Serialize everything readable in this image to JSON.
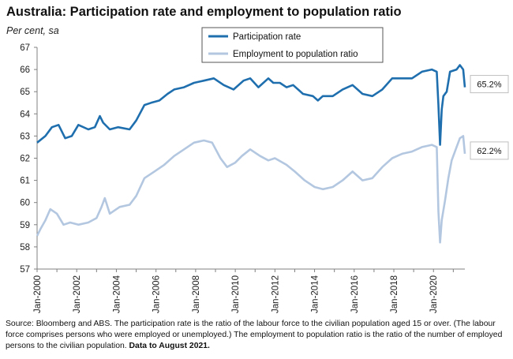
{
  "title": "Australia: Participation rate and employment to population ratio",
  "subtitle": "Per cent, sa",
  "source_text": "Source: Bloomberg and ABS.  The participation rate is the ratio of the labour force to the civilian population aged 15 or over. (The labour force comprises persons who were employed or unemployed.)  The employment to population ratio is the ratio of the number of employed persons to the civilian population. ",
  "source_bold": "Data to August 2021.",
  "colors": {
    "participation": "#1f6fae",
    "employment": "#b3c7e0",
    "axis": "#808080"
  },
  "chart_data": {
    "type": "line",
    "title": "Australia: Participation rate and employment to population ratio",
    "ylabel": "Per cent, sa",
    "ylim": [
      57,
      67
    ],
    "yticks": [
      57,
      58,
      59,
      60,
      61,
      62,
      63,
      64,
      65,
      66,
      67
    ],
    "xlim": [
      "2000-01",
      "2021-08"
    ],
    "xticks": [
      "Jan-2000",
      "Jan-2002",
      "Jan-2004",
      "Jan-2006",
      "Jan-2008",
      "Jan-2010",
      "Jan-2012",
      "Jan-2014",
      "Jan-2016",
      "Jan-2018",
      "Jan-2020"
    ],
    "grid": false,
    "legend_position": "top-center",
    "series": [
      {
        "name": "Participation rate",
        "color": "#1f6fae",
        "end_label": "65.2%",
        "points": [
          [
            "2000-01",
            62.7
          ],
          [
            "2000-06",
            63.0
          ],
          [
            "2000-10",
            63.4
          ],
          [
            "2001-02",
            63.5
          ],
          [
            "2001-06",
            62.9
          ],
          [
            "2001-10",
            63.0
          ],
          [
            "2002-02",
            63.5
          ],
          [
            "2002-08",
            63.3
          ],
          [
            "2002-12",
            63.4
          ],
          [
            "2003-03",
            63.9
          ],
          [
            "2003-05",
            63.6
          ],
          [
            "2003-09",
            63.3
          ],
          [
            "2004-02",
            63.4
          ],
          [
            "2004-09",
            63.3
          ],
          [
            "2005-01",
            63.7
          ],
          [
            "2005-06",
            64.4
          ],
          [
            "2005-10",
            64.5
          ],
          [
            "2006-03",
            64.6
          ],
          [
            "2006-08",
            64.9
          ],
          [
            "2006-12",
            65.1
          ],
          [
            "2007-06",
            65.2
          ],
          [
            "2007-12",
            65.4
          ],
          [
            "2008-06",
            65.5
          ],
          [
            "2008-12",
            65.6
          ],
          [
            "2009-06",
            65.3
          ],
          [
            "2009-12",
            65.1
          ],
          [
            "2010-06",
            65.5
          ],
          [
            "2010-10",
            65.6
          ],
          [
            "2011-03",
            65.2
          ],
          [
            "2011-09",
            65.6
          ],
          [
            "2011-12",
            65.4
          ],
          [
            "2012-04",
            65.4
          ],
          [
            "2012-08",
            65.2
          ],
          [
            "2012-12",
            65.3
          ],
          [
            "2013-06",
            64.9
          ],
          [
            "2013-12",
            64.8
          ],
          [
            "2014-03",
            64.6
          ],
          [
            "2014-06",
            64.8
          ],
          [
            "2014-12",
            64.8
          ],
          [
            "2015-06",
            65.1
          ],
          [
            "2015-12",
            65.3
          ],
          [
            "2016-06",
            64.9
          ],
          [
            "2016-12",
            64.8
          ],
          [
            "2017-06",
            65.1
          ],
          [
            "2017-12",
            65.6
          ],
          [
            "2018-06",
            65.6
          ],
          [
            "2018-12",
            65.6
          ],
          [
            "2019-06",
            65.9
          ],
          [
            "2019-12",
            66.0
          ],
          [
            "2020-03",
            65.9
          ],
          [
            "2020-04",
            64.4
          ],
          [
            "2020-05",
            62.6
          ],
          [
            "2020-06",
            64.2
          ],
          [
            "2020-07",
            64.8
          ],
          [
            "2020-09",
            65.0
          ],
          [
            "2020-11",
            65.9
          ],
          [
            "2021-03",
            66.0
          ],
          [
            "2021-05",
            66.2
          ],
          [
            "2021-07",
            66.0
          ],
          [
            "2021-08",
            65.2
          ]
        ]
      },
      {
        "name": "Employment to population ratio",
        "color": "#b3c7e0",
        "end_label": "62.2%",
        "points": [
          [
            "2000-01",
            58.5
          ],
          [
            "2000-03",
            58.8
          ],
          [
            "2000-06",
            59.2
          ],
          [
            "2000-09",
            59.7
          ],
          [
            "2001-01",
            59.5
          ],
          [
            "2001-05",
            59.0
          ],
          [
            "2001-09",
            59.1
          ],
          [
            "2002-02",
            59.0
          ],
          [
            "2002-08",
            59.1
          ],
          [
            "2003-01",
            59.3
          ],
          [
            "2003-04",
            59.8
          ],
          [
            "2003-06",
            60.2
          ],
          [
            "2003-09",
            59.5
          ],
          [
            "2004-03",
            59.8
          ],
          [
            "2004-09",
            59.9
          ],
          [
            "2005-01",
            60.3
          ],
          [
            "2005-06",
            61.1
          ],
          [
            "2005-12",
            61.4
          ],
          [
            "2006-06",
            61.7
          ],
          [
            "2006-12",
            62.1
          ],
          [
            "2007-06",
            62.4
          ],
          [
            "2007-12",
            62.7
          ],
          [
            "2008-06",
            62.8
          ],
          [
            "2008-11",
            62.7
          ],
          [
            "2009-04",
            62.0
          ],
          [
            "2009-08",
            61.6
          ],
          [
            "2010-01",
            61.8
          ],
          [
            "2010-05",
            62.1
          ],
          [
            "2010-10",
            62.4
          ],
          [
            "2011-04",
            62.1
          ],
          [
            "2011-09",
            61.9
          ],
          [
            "2012-01",
            62.0
          ],
          [
            "2012-08",
            61.7
          ],
          [
            "2013-01",
            61.4
          ],
          [
            "2013-07",
            61.0
          ],
          [
            "2014-01",
            60.7
          ],
          [
            "2014-06",
            60.6
          ],
          [
            "2014-12",
            60.7
          ],
          [
            "2015-06",
            61.0
          ],
          [
            "2015-12",
            61.4
          ],
          [
            "2016-06",
            61.0
          ],
          [
            "2016-12",
            61.1
          ],
          [
            "2017-06",
            61.6
          ],
          [
            "2017-12",
            62.0
          ],
          [
            "2018-06",
            62.2
          ],
          [
            "2018-12",
            62.3
          ],
          [
            "2019-06",
            62.5
          ],
          [
            "2019-12",
            62.6
          ],
          [
            "2020-03",
            62.5
          ],
          [
            "2020-04",
            59.6
          ],
          [
            "2020-05",
            58.2
          ],
          [
            "2020-06",
            59.2
          ],
          [
            "2020-08",
            60.1
          ],
          [
            "2020-10",
            61.1
          ],
          [
            "2020-12",
            61.9
          ],
          [
            "2021-03",
            62.5
          ],
          [
            "2021-05",
            62.9
          ],
          [
            "2021-07",
            63.0
          ],
          [
            "2021-08",
            62.2
          ]
        ]
      }
    ]
  }
}
